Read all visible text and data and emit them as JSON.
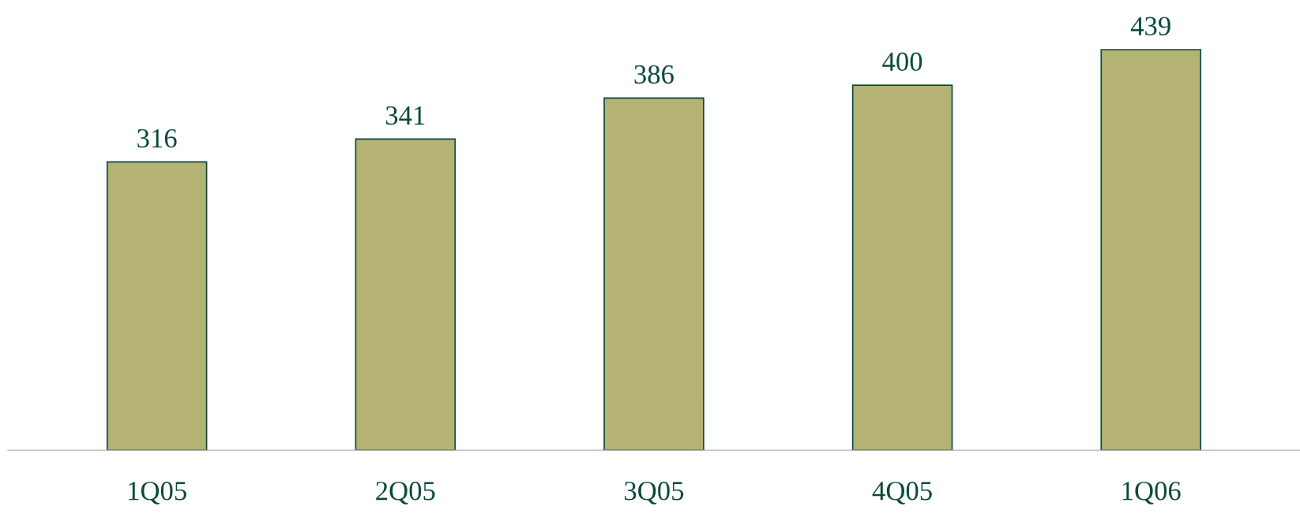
{
  "chart_data": {
    "type": "bar",
    "categories": [
      "1Q05",
      "2Q05",
      "3Q05",
      "4Q05",
      "1Q06"
    ],
    "values": [
      316,
      341,
      386,
      400,
      439
    ],
    "color": "#b4b374",
    "data_labels": true,
    "tick_labels": "x",
    "grid": false,
    "legend": false
  }
}
